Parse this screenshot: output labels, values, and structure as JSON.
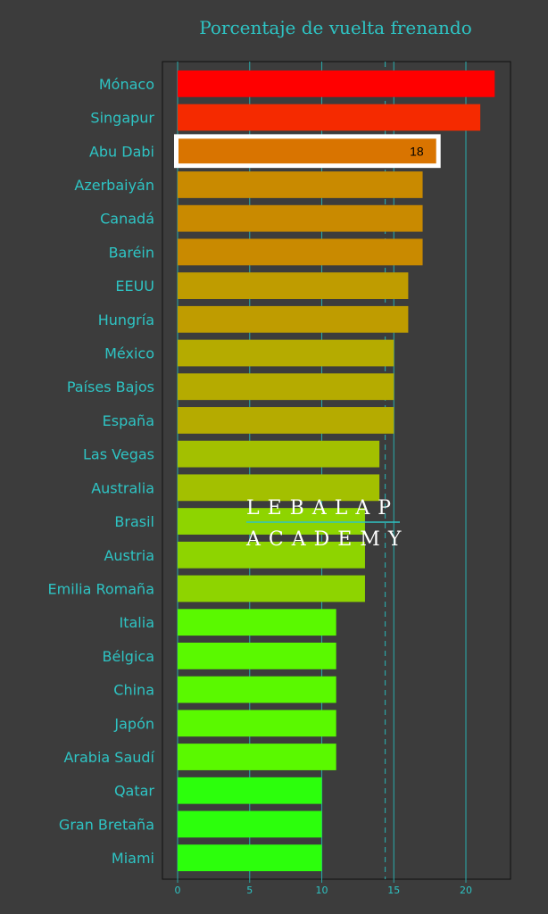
{
  "chart_data": {
    "type": "bar",
    "orientation": "horizontal",
    "title": "Porcentaje de vuelta frenando",
    "categories": [
      "Mónaco",
      "Singapur",
      "Abu Dabi",
      "Azerbaiyán",
      "Canadá",
      "Baréin",
      "EEUU",
      "Hungría",
      "México",
      "Países Bajos",
      "España",
      "Las Vegas",
      "Australia",
      "Brasil",
      "Austria",
      "Emilia Romaña",
      "Italia",
      "Bélgica",
      "China",
      "Japón",
      "Arabia Saudí",
      "Qatar",
      "Gran Bretaña",
      "Miami"
    ],
    "values": [
      22,
      21,
      18,
      17,
      17,
      17,
      16,
      16,
      15,
      15,
      15,
      14,
      14,
      13,
      13,
      13,
      11,
      11,
      11,
      11,
      11,
      10,
      10,
      10
    ],
    "colors": [
      "#ff0000",
      "#f52a00",
      "#d97400",
      "#c98a00",
      "#c98a00",
      "#c98a00",
      "#bf9c00",
      "#bf9c00",
      "#b5ab00",
      "#b5ab00",
      "#b5ab00",
      "#a3c000",
      "#a3c000",
      "#8ed400",
      "#8ed400",
      "#8ed400",
      "#5af900",
      "#5af900",
      "#5af900",
      "#5af900",
      "#5af900",
      "#2cff0c",
      "#2cff0c",
      "#2cff0c"
    ],
    "highlight": {
      "category": "Abu Dabi",
      "label": "18"
    },
    "xticks": [
      0,
      5,
      10,
      15,
      20
    ],
    "xlim": [
      0,
      23.5
    ],
    "reference_line": 14.4,
    "grid": true
  },
  "watermark": {
    "line1": "LEBALAP",
    "line2": "ACADEMY"
  },
  "colors": {
    "background": "#3c3c3c",
    "text": "#2ec4c4",
    "frame": "#111111"
  }
}
